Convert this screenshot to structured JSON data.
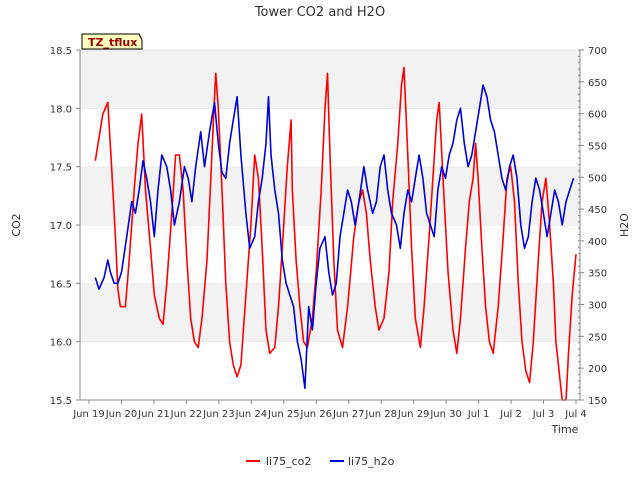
{
  "chart_data": {
    "type": "line",
    "title": "Tower CO2 and H2O",
    "site_label": "TZ_tflux",
    "xlabel": "Time",
    "ylabel_left": "CO2",
    "ylabel_right": "H2O",
    "x_ticks": [
      "Jun 19",
      "Jun 20",
      "Jun 21",
      "Jun 22",
      "Jun 23",
      "Jun 24",
      "Jun 25",
      "Jun 26",
      "Jun 27",
      "Jun 28",
      "Jun 29",
      "Jun 30",
      "Jul 1",
      "Jul 2",
      "Jul 3",
      "Jul 4"
    ],
    "xlim_days": [
      0,
      16
    ],
    "ylim_left": [
      15.5,
      18.5
    ],
    "y_ticks_left": [
      "15.5",
      "16.0",
      "16.5",
      "17.0",
      "17.5",
      "18.0",
      "18.5"
    ],
    "ylim_right": [
      150,
      700
    ],
    "y_ticks_right": [
      "150",
      "200",
      "250",
      "300",
      "350",
      "400",
      "450",
      "500",
      "550",
      "600",
      "650",
      "700"
    ],
    "legend_position": "bottom",
    "background_bands": "alternating grey",
    "series": [
      {
        "name": "li75_co2",
        "color": "#ff0000",
        "axis": "left",
        "points": [
          [
            0.25,
            17.55
          ],
          [
            0.55,
            17.95
          ],
          [
            0.75,
            18.05
          ],
          [
            0.9,
            17.5
          ],
          [
            1.05,
            16.9
          ],
          [
            1.15,
            16.45
          ],
          [
            1.25,
            16.3
          ],
          [
            1.45,
            16.3
          ],
          [
            1.6,
            16.7
          ],
          [
            1.8,
            17.3
          ],
          [
            1.95,
            17.7
          ],
          [
            2.1,
            17.95
          ],
          [
            2.25,
            17.3
          ],
          [
            2.45,
            16.8
          ],
          [
            2.6,
            16.4
          ],
          [
            2.8,
            16.2
          ],
          [
            2.95,
            16.15
          ],
          [
            3.1,
            16.5
          ],
          [
            3.3,
            17.1
          ],
          [
            3.45,
            17.6
          ],
          [
            3.6,
            17.6
          ],
          [
            3.75,
            17.3
          ],
          [
            3.9,
            16.7
          ],
          [
            4.05,
            16.2
          ],
          [
            4.2,
            16.0
          ],
          [
            4.35,
            15.95
          ],
          [
            4.5,
            16.2
          ],
          [
            4.7,
            16.7
          ],
          [
            4.85,
            17.4
          ],
          [
            5.0,
            18.1
          ],
          [
            5.05,
            18.3
          ],
          [
            5.15,
            18.0
          ],
          [
            5.3,
            17.3
          ],
          [
            5.45,
            16.5
          ],
          [
            5.6,
            16.0
          ],
          [
            5.75,
            15.8
          ],
          [
            5.9,
            15.7
          ],
          [
            6.05,
            15.8
          ],
          [
            6.25,
            16.4
          ],
          [
            6.45,
            17.0
          ],
          [
            6.6,
            17.6
          ],
          [
            6.75,
            17.4
          ],
          [
            6.9,
            16.8
          ],
          [
            7.05,
            16.1
          ],
          [
            7.2,
            15.9
          ],
          [
            7.4,
            15.95
          ],
          [
            7.55,
            16.3
          ],
          [
            7.7,
            16.8
          ],
          [
            7.9,
            17.5
          ],
          [
            8.05,
            17.9
          ],
          [
            8.1,
            17.3
          ],
          [
            8.25,
            16.7
          ],
          [
            8.4,
            16.3
          ],
          [
            8.55,
            16.0
          ],
          [
            8.7,
            15.95
          ],
          [
            8.9,
            16.2
          ],
          [
            9.05,
            16.6
          ],
          [
            9.25,
            17.3
          ],
          [
            9.4,
            18.0
          ],
          [
            9.5,
            18.3
          ],
          [
            9.6,
            17.6
          ],
          [
            9.75,
            16.7
          ],
          [
            9.9,
            16.1
          ],
          [
            10.1,
            15.95
          ],
          [
            10.3,
            16.3
          ],
          [
            10.55,
            16.9
          ],
          [
            10.75,
            17.2
          ],
          [
            10.9,
            17.3
          ],
          [
            11.05,
            17.1
          ],
          [
            11.2,
            16.7
          ],
          [
            11.4,
            16.3
          ],
          [
            11.55,
            16.1
          ],
          [
            11.75,
            16.2
          ],
          [
            11.95,
            16.6
          ],
          [
            12.1,
            17.2
          ],
          [
            12.3,
            17.7
          ],
          [
            12.45,
            18.2
          ],
          [
            12.55,
            18.35
          ],
          [
            12.7,
            17.6
          ],
          [
            12.85,
            16.8
          ],
          [
            13.0,
            16.2
          ],
          [
            13.2,
            15.95
          ],
          [
            13.35,
            16.3
          ],
          [
            13.55,
            16.9
          ],
          [
            13.7,
            17.4
          ],
          [
            13.85,
            17.9
          ],
          [
            13.95,
            18.05
          ],
          [
            14.1,
            17.4
          ],
          [
            14.3,
            16.6
          ],
          [
            14.5,
            16.1
          ],
          [
            14.65,
            15.9
          ],
          [
            14.8,
            16.2
          ],
          [
            15.0,
            16.8
          ],
          [
            15.15,
            17.2
          ],
          [
            15.3,
            17.4
          ],
          [
            15.4,
            17.7
          ],
          [
            15.5,
            17.4
          ],
          [
            15.65,
            16.8
          ],
          [
            15.8,
            16.3
          ],
          [
            15.95,
            16.0
          ],
          [
            16.1,
            15.9
          ],
          [
            16.3,
            16.3
          ],
          [
            16.5,
            16.9
          ],
          [
            16.65,
            17.4
          ],
          [
            16.8,
            17.5
          ],
          [
            16.95,
            17.2
          ],
          [
            17.1,
            16.5
          ],
          [
            17.25,
            16.0
          ],
          [
            17.4,
            15.75
          ],
          [
            17.55,
            15.65
          ],
          [
            17.7,
            16.0
          ],
          [
            17.9,
            16.7
          ],
          [
            18.05,
            17.2
          ],
          [
            18.2,
            17.4
          ],
          [
            18.35,
            17.0
          ],
          [
            18.5,
            16.5
          ],
          [
            18.6,
            16.0
          ],
          [
            18.7,
            15.8
          ],
          [
            18.85,
            15.5
          ],
          [
            19.0,
            15.5
          ],
          [
            19.1,
            15.9
          ],
          [
            19.25,
            16.4
          ],
          [
            19.4,
            16.75
          ]
        ]
      },
      {
        "name": "li75_h2o",
        "color": "#0000dd",
        "axis": "left",
        "points": [
          [
            0.25,
            16.55
          ],
          [
            0.4,
            16.45
          ],
          [
            0.6,
            16.55
          ],
          [
            0.75,
            16.7
          ],
          [
            0.85,
            16.6
          ],
          [
            1.0,
            16.5
          ],
          [
            1.15,
            16.5
          ],
          [
            1.3,
            16.6
          ],
          [
            1.5,
            16.9
          ],
          [
            1.7,
            17.2
          ],
          [
            1.85,
            17.1
          ],
          [
            2.0,
            17.3
          ],
          [
            2.15,
            17.55
          ],
          [
            2.3,
            17.4
          ],
          [
            2.45,
            17.2
          ],
          [
            2.6,
            16.9
          ],
          [
            2.75,
            17.3
          ],
          [
            2.9,
            17.6
          ],
          [
            3.1,
            17.5
          ],
          [
            3.25,
            17.3
          ],
          [
            3.4,
            17.0
          ],
          [
            3.6,
            17.2
          ],
          [
            3.8,
            17.5
          ],
          [
            3.95,
            17.4
          ],
          [
            4.1,
            17.2
          ],
          [
            4.25,
            17.5
          ],
          [
            4.45,
            17.8
          ],
          [
            4.6,
            17.5
          ],
          [
            4.8,
            17.8
          ],
          [
            5.0,
            18.05
          ],
          [
            5.15,
            17.7
          ],
          [
            5.3,
            17.45
          ],
          [
            5.45,
            17.4
          ],
          [
            5.6,
            17.7
          ],
          [
            5.75,
            17.9
          ],
          [
            5.9,
            18.1
          ],
          [
            6.05,
            17.6
          ],
          [
            6.25,
            17.1
          ],
          [
            6.4,
            16.8
          ],
          [
            6.6,
            16.9
          ],
          [
            6.75,
            17.2
          ],
          [
            6.9,
            17.4
          ],
          [
            7.05,
            17.7
          ],
          [
            7.15,
            18.1
          ],
          [
            7.25,
            17.6
          ],
          [
            7.4,
            17.3
          ],
          [
            7.55,
            17.1
          ],
          [
            7.7,
            16.7
          ],
          [
            7.85,
            16.5
          ],
          [
            8.0,
            16.4
          ],
          [
            8.15,
            16.3
          ],
          [
            8.3,
            16.0
          ],
          [
            8.45,
            15.85
          ],
          [
            8.6,
            15.6
          ],
          [
            8.75,
            16.3
          ],
          [
            8.9,
            16.1
          ],
          [
            9.05,
            16.5
          ],
          [
            9.2,
            16.8
          ],
          [
            9.4,
            16.9
          ],
          [
            9.55,
            16.6
          ],
          [
            9.7,
            16.4
          ],
          [
            9.85,
            16.5
          ],
          [
            10.0,
            16.9
          ],
          [
            10.15,
            17.1
          ],
          [
            10.3,
            17.3
          ],
          [
            10.45,
            17.2
          ],
          [
            10.6,
            17.0
          ],
          [
            10.75,
            17.2
          ],
          [
            10.95,
            17.5
          ],
          [
            11.1,
            17.3
          ],
          [
            11.3,
            17.1
          ],
          [
            11.45,
            17.2
          ],
          [
            11.6,
            17.5
          ],
          [
            11.75,
            17.6
          ],
          [
            11.9,
            17.3
          ],
          [
            12.05,
            17.1
          ],
          [
            12.25,
            17.0
          ],
          [
            12.4,
            16.8
          ],
          [
            12.55,
            17.1
          ],
          [
            12.7,
            17.3
          ],
          [
            12.85,
            17.2
          ],
          [
            13.0,
            17.4
          ],
          [
            13.15,
            17.6
          ],
          [
            13.3,
            17.4
          ],
          [
            13.45,
            17.1
          ],
          [
            13.6,
            17.0
          ],
          [
            13.75,
            16.9
          ],
          [
            13.9,
            17.3
          ],
          [
            14.05,
            17.5
          ],
          [
            14.2,
            17.4
          ],
          [
            14.35,
            17.6
          ],
          [
            14.5,
            17.7
          ],
          [
            14.65,
            17.9
          ],
          [
            14.8,
            18.0
          ],
          [
            14.95,
            17.7
          ],
          [
            15.1,
            17.5
          ],
          [
            15.25,
            17.6
          ],
          [
            15.4,
            17.8
          ],
          [
            15.55,
            18.0
          ],
          [
            15.7,
            18.2
          ],
          [
            15.85,
            18.1
          ],
          [
            16.0,
            17.9
          ],
          [
            16.15,
            17.8
          ],
          [
            16.3,
            17.6
          ],
          [
            16.45,
            17.4
          ],
          [
            16.6,
            17.3
          ],
          [
            16.75,
            17.5
          ],
          [
            16.9,
            17.6
          ],
          [
            17.05,
            17.4
          ],
          [
            17.2,
            17.0
          ],
          [
            17.35,
            16.8
          ],
          [
            17.5,
            16.9
          ],
          [
            17.65,
            17.2
          ],
          [
            17.8,
            17.4
          ],
          [
            17.95,
            17.3
          ],
          [
            18.1,
            17.1
          ],
          [
            18.25,
            16.9
          ],
          [
            18.4,
            17.1
          ],
          [
            18.55,
            17.3
          ],
          [
            18.7,
            17.2
          ],
          [
            18.85,
            17.0
          ],
          [
            19.0,
            17.2
          ],
          [
            19.15,
            17.3
          ],
          [
            19.3,
            17.4
          ]
        ]
      }
    ]
  }
}
